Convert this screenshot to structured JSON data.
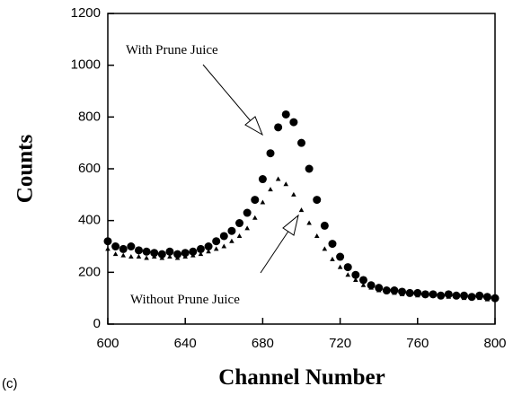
{
  "chart_data": {
    "type": "scatter",
    "x_label": "Channel Number",
    "y_label": "Counts",
    "panel_label": "(c)",
    "annotations": [
      "With Prune Juice",
      "Without Prune Juice"
    ],
    "xlim": [
      600,
      800
    ],
    "xticks": [
      600,
      640,
      680,
      720,
      760,
      800
    ],
    "ylim": [
      0,
      1200
    ],
    "yticks": [
      0,
      200,
      400,
      600,
      800,
      1000,
      1200
    ],
    "x": [
      600,
      604,
      608,
      612,
      616,
      620,
      624,
      628,
      632,
      636,
      640,
      644,
      648,
      652,
      656,
      660,
      664,
      668,
      672,
      676,
      680,
      684,
      688,
      692,
      696,
      700,
      704,
      708,
      712,
      716,
      720,
      724,
      728,
      732,
      736,
      740,
      744,
      748,
      752,
      756,
      760,
      764,
      768,
      772,
      776,
      780,
      784,
      788,
      792,
      796,
      800
    ],
    "series": [
      {
        "marker": "circle",
        "color": "#000000",
        "values": [
          320,
          300,
          290,
          300,
          285,
          280,
          275,
          270,
          280,
          270,
          275,
          280,
          290,
          300,
          320,
          340,
          360,
          390,
          430,
          480,
          560,
          660,
          760,
          810,
          780,
          700,
          600,
          480,
          380,
          310,
          260,
          220,
          190,
          170,
          150,
          140,
          130,
          130,
          125,
          120,
          120,
          115,
          115,
          110,
          115,
          110,
          110,
          105,
          110,
          105,
          100
        ]
      },
      {
        "marker": "triangle",
        "color": "#000000",
        "values": [
          290,
          270,
          265,
          260,
          260,
          255,
          260,
          255,
          260,
          255,
          260,
          265,
          270,
          280,
          290,
          300,
          320,
          340,
          370,
          410,
          470,
          520,
          560,
          540,
          500,
          440,
          390,
          340,
          290,
          250,
          220,
          190,
          170,
          150,
          140,
          130,
          125,
          120,
          115,
          115,
          110,
          110,
          110,
          105,
          105,
          105,
          100,
          100,
          100,
          95,
          95
        ]
      }
    ]
  }
}
